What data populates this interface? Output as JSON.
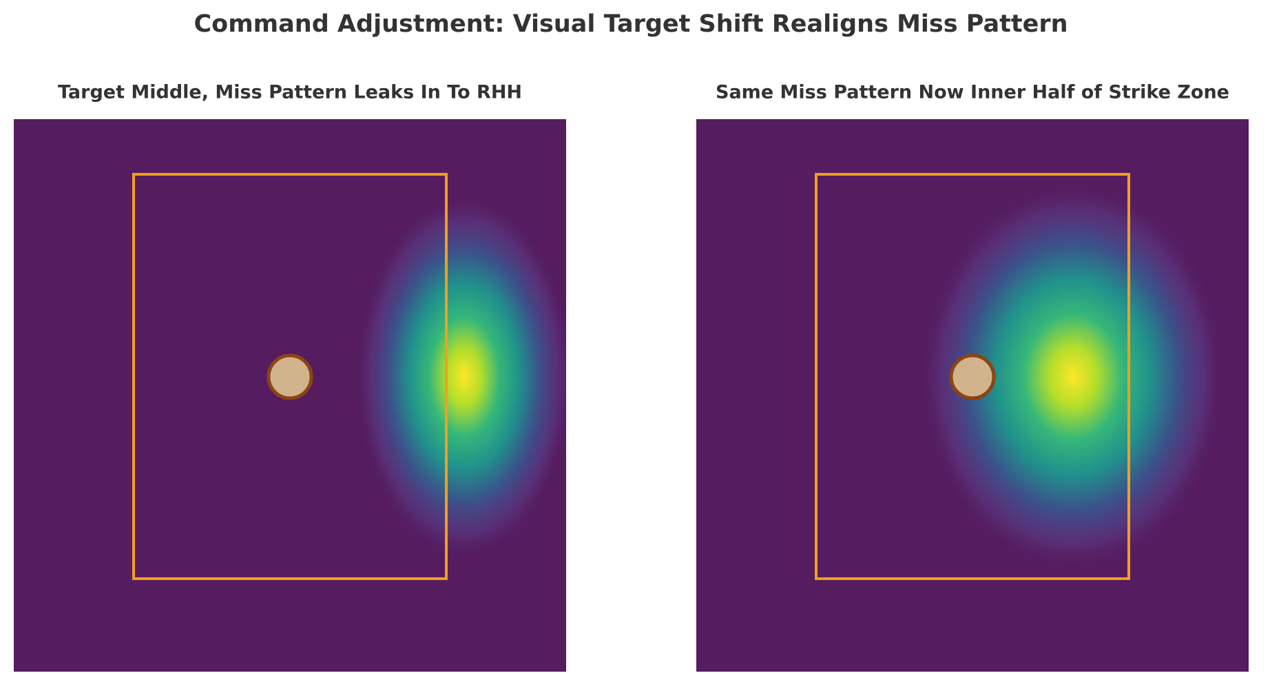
{
  "title": "Command Adjustment: Visual Target Shift Realigns Miss Pattern",
  "chart_data": [
    {
      "type": "heatmap",
      "title": "Target Middle, Miss Pattern Leaks In To RHH"
    },
    {
      "type": "heatmap",
      "title": "Same Miss Pattern Now Inner Half of Strike Zone"
    }
  ]
}
